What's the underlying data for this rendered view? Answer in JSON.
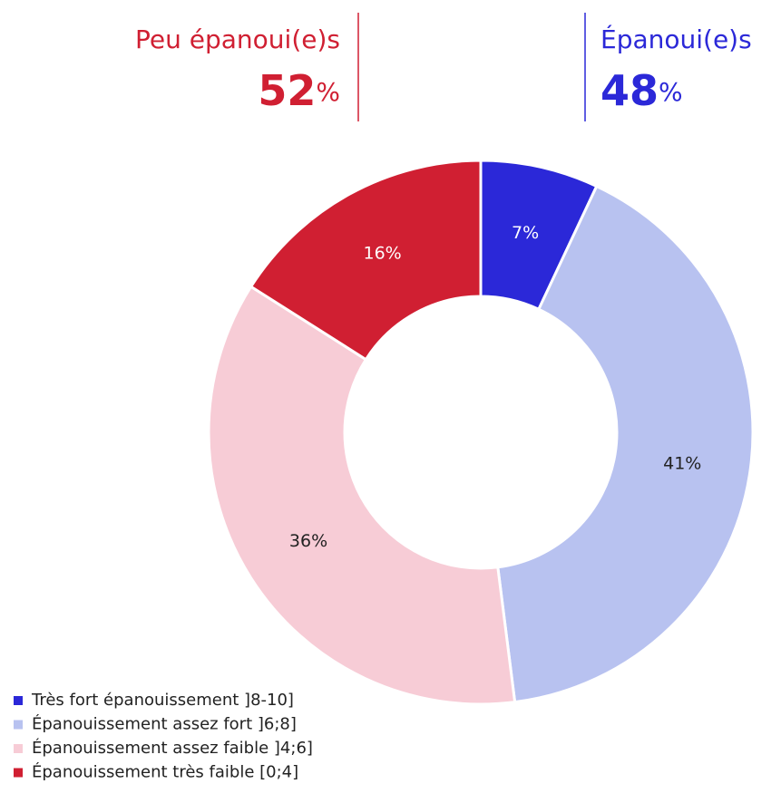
{
  "chart_data": {
    "type": "donut",
    "categories": [
      "Très fort épanouissement ]8-10]",
      "Épanouissement assez fort ]6;8]",
      "Épanouissement assez faible ]4;6]",
      "Épanouissement très faible [0;4]"
    ],
    "values": [
      7,
      41,
      36,
      16
    ],
    "value_labels": [
      "7%",
      "41%",
      "36%",
      "16%"
    ],
    "colors": [
      "#2b28d8",
      "#b8c2f0",
      "#f7ccd6",
      "#d01f32"
    ],
    "label_colors": [
      "#ffffff",
      "#222222",
      "#222222",
      "#ffffff"
    ],
    "groups": [
      {
        "label": "Peu épanoui(e)s",
        "value": 52,
        "unit": "%",
        "color": "#d01f32"
      },
      {
        "label": "Épanoui(e)s",
        "value": 48,
        "unit": "%",
        "color": "#2b28d8"
      }
    ]
  }
}
